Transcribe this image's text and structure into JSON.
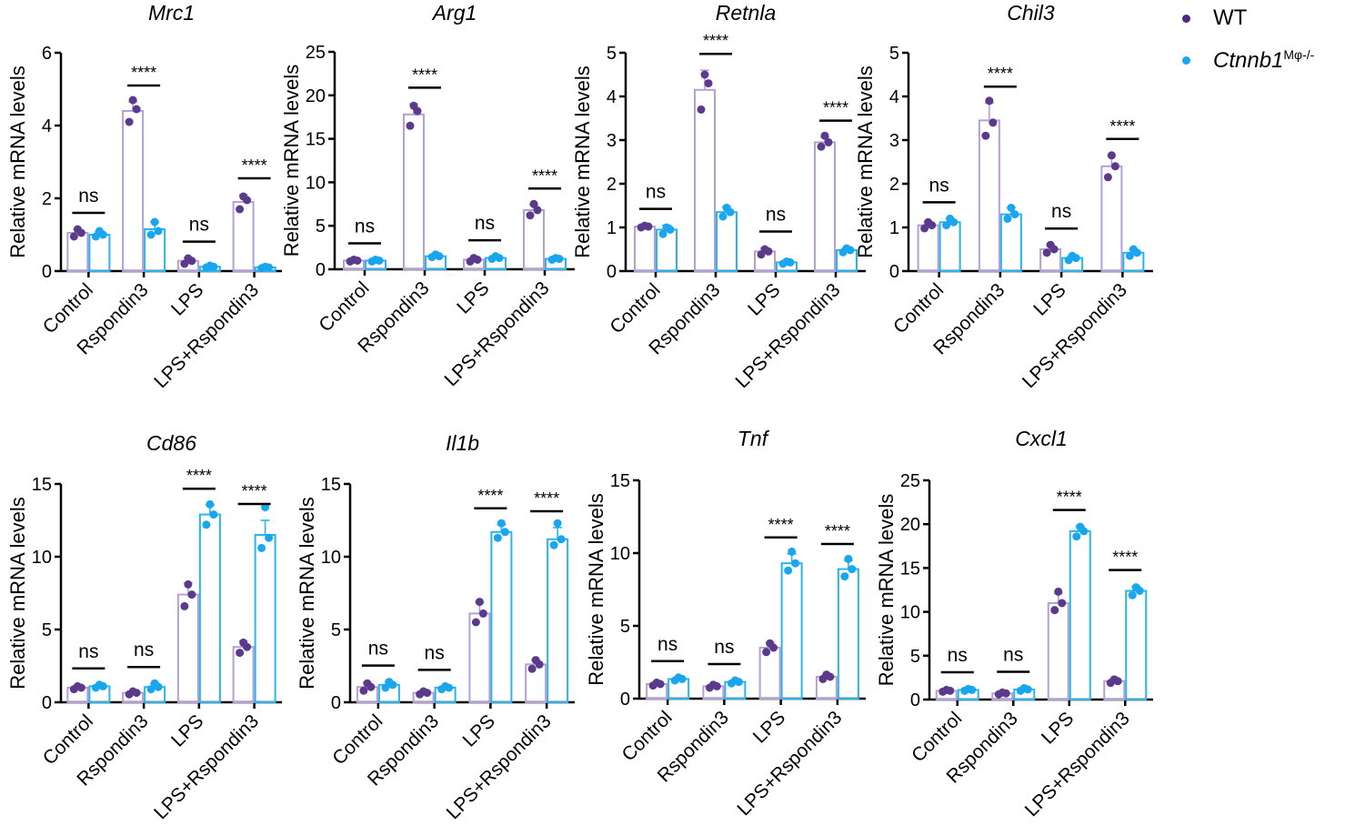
{
  "legend": {
    "wt_label": "WT",
    "ko_label_main": "Ctnnb1",
    "ko_label_sup": "Mφ-/-"
  },
  "colors": {
    "wt_fill": "#5b3a8c",
    "wt_bar": "#b49fd8",
    "ko_fill": "#1aa6ef",
    "ko_bar": "#27b5f0",
    "axis": "#000000"
  },
  "chart_data": [
    {
      "type": "bar",
      "title": "Mrc1",
      "ylabel": "Relative mRNA levels",
      "categories": [
        "Control",
        "Rspondin3",
        "LPS",
        "LPS+Rspondin3"
      ],
      "ylim": [
        0,
        6
      ],
      "yticks": [
        "0",
        "2",
        "4",
        "6"
      ],
      "series": [
        {
          "name": "WT",
          "values": [
            1.05,
            4.4,
            0.28,
            1.9
          ],
          "sd": [
            0.1,
            0.25,
            0.08,
            0.2
          ],
          "points": [
            [
              0.95,
              1.05,
              1.15
            ],
            [
              4.1,
              4.45,
              4.7
            ],
            [
              0.2,
              0.28,
              0.35
            ],
            [
              1.7,
              1.95,
              2.05
            ]
          ]
        },
        {
          "name": "Ctnnb1 Mφ-/-",
          "values": [
            1.0,
            1.15,
            0.12,
            0.1
          ],
          "sd": [
            0.08,
            0.2,
            0.03,
            0.02
          ],
          "points": [
            [
              0.95,
              1.0,
              1.1
            ],
            [
              1.0,
              1.1,
              1.35
            ],
            [
              0.1,
              0.12,
              0.15
            ],
            [
              0.08,
              0.1,
              0.12
            ]
          ]
        }
      ],
      "annotations": [
        "ns",
        "****",
        "ns",
        "****"
      ]
    },
    {
      "type": "bar",
      "title": "Arg1",
      "ylabel": "Relative mRNA levels",
      "categories": [
        "Control",
        "Rspondin3",
        "LPS",
        "LPS+Rspondin3"
      ],
      "ylim": [
        0,
        25
      ],
      "yticks": [
        "0",
        "5",
        "10",
        "15",
        "20",
        "25"
      ],
      "series": [
        {
          "name": "WT",
          "values": [
            1.0,
            17.8,
            1.1,
            6.8
          ],
          "sd": [
            0.1,
            1.2,
            0.2,
            0.6
          ],
          "points": [
            [
              0.9,
              1.0,
              1.1
            ],
            [
              16.5,
              18.2,
              18.8
            ],
            [
              0.9,
              1.1,
              1.3
            ],
            [
              6.2,
              6.8,
              7.5
            ]
          ]
        },
        {
          "name": "Ctnnb1 Mφ-/-",
          "values": [
            1.0,
            1.5,
            1.3,
            1.2
          ],
          "sd": [
            0.1,
            0.15,
            0.15,
            0.1
          ],
          "points": [
            [
              0.9,
              1.0,
              1.1
            ],
            [
              1.4,
              1.5,
              1.7
            ],
            [
              1.2,
              1.3,
              1.5
            ],
            [
              1.1,
              1.2,
              1.3
            ]
          ]
        }
      ],
      "annotations": [
        "ns",
        "****",
        "ns",
        "****"
      ]
    },
    {
      "type": "bar",
      "title": "Retnla",
      "ylabel": "Relative mRNA levels",
      "categories": [
        "Control",
        "Rspondin3",
        "LPS",
        "LPS+Rspondin3"
      ],
      "ylim": [
        0,
        5
      ],
      "yticks": [
        "0",
        "1",
        "2",
        "3",
        "4",
        "5"
      ],
      "series": [
        {
          "name": "WT",
          "values": [
            1.02,
            4.15,
            0.45,
            2.95
          ],
          "sd": [
            0.03,
            0.45,
            0.08,
            0.12
          ],
          "points": [
            [
              1.0,
              1.02,
              1.04
            ],
            [
              3.7,
              4.3,
              4.5
            ],
            [
              0.38,
              0.45,
              0.5
            ],
            [
              2.85,
              2.95,
              3.1
            ]
          ]
        },
        {
          "name": "Ctnnb1 Mφ-/-",
          "values": [
            0.95,
            1.35,
            0.2,
            0.48
          ],
          "sd": [
            0.1,
            0.12,
            0.03,
            0.05
          ],
          "points": [
            [
              0.85,
              0.95,
              1.0
            ],
            [
              1.25,
              1.35,
              1.45
            ],
            [
              0.17,
              0.2,
              0.22
            ],
            [
              0.43,
              0.48,
              0.52
            ]
          ]
        }
      ],
      "annotations": [
        "ns",
        "****",
        "ns",
        "****"
      ]
    },
    {
      "type": "bar",
      "title": "Chil3",
      "ylabel": "Relative mRNA levels",
      "categories": [
        "Control",
        "Rspondin3",
        "LPS",
        "LPS+Rspondin3"
      ],
      "ylim": [
        0,
        5
      ],
      "yticks": [
        "0",
        "1",
        "2",
        "3",
        "4",
        "5"
      ],
      "series": [
        {
          "name": "WT",
          "values": [
            1.05,
            3.45,
            0.5,
            2.4
          ],
          "sd": [
            0.08,
            0.4,
            0.1,
            0.25
          ],
          "points": [
            [
              0.98,
              1.05,
              1.12
            ],
            [
              3.1,
              3.4,
              3.9
            ],
            [
              0.42,
              0.5,
              0.6
            ],
            [
              2.15,
              2.4,
              2.65
            ]
          ]
        },
        {
          "name": "Ctnnb1 Mφ-/-",
          "values": [
            1.12,
            1.3,
            0.3,
            0.42
          ],
          "sd": [
            0.08,
            0.15,
            0.05,
            0.08
          ],
          "points": [
            [
              1.05,
              1.12,
              1.2
            ],
            [
              1.2,
              1.3,
              1.45
            ],
            [
              0.25,
              0.3,
              0.35
            ],
            [
              0.35,
              0.42,
              0.5
            ]
          ]
        }
      ],
      "annotations": [
        "ns",
        "****",
        "ns",
        "****"
      ]
    },
    {
      "type": "bar",
      "title": "Cd86",
      "ylabel": "Relative mRNA levels",
      "categories": [
        "Control",
        "Rspondin3",
        "LPS",
        "LPS+Rspondin3"
      ],
      "ylim": [
        0,
        15
      ],
      "yticks": [
        "0",
        "5",
        "10",
        "15"
      ],
      "series": [
        {
          "name": "WT",
          "values": [
            1.0,
            0.65,
            7.4,
            3.8
          ],
          "sd": [
            0.15,
            0.1,
            0.8,
            0.4
          ],
          "points": [
            [
              0.9,
              1.0,
              1.1
            ],
            [
              0.55,
              0.65,
              0.75
            ],
            [
              6.6,
              7.4,
              8.1
            ],
            [
              3.4,
              3.8,
              4.1
            ]
          ]
        },
        {
          "name": "Ctnnb1 Mφ-/-",
          "values": [
            1.1,
            1.05,
            12.9,
            11.5
          ],
          "sd": [
            0.1,
            0.25,
            0.65,
            1.0
          ],
          "points": [
            [
              1.0,
              1.1,
              1.2
            ],
            [
              0.9,
              1.05,
              1.3
            ],
            [
              12.2,
              12.9,
              13.6
            ],
            [
              10.6,
              11.3,
              13.4
            ]
          ]
        }
      ],
      "annotations": [
        "ns",
        "ns",
        "****",
        "****"
      ]
    },
    {
      "type": "bar",
      "title": "Il1b",
      "ylabel": "Relative mRNA levels",
      "categories": [
        "Control",
        "Rspondin3",
        "LPS",
        "LPS+Rspondin3"
      ],
      "ylim": [
        0,
        15
      ],
      "yticks": [
        "0",
        "5",
        "10",
        "15"
      ],
      "series": [
        {
          "name": "WT",
          "values": [
            1.05,
            0.65,
            6.1,
            2.6
          ],
          "sd": [
            0.3,
            0.1,
            0.75,
            0.3
          ],
          "points": [
            [
              0.8,
              1.05,
              1.3
            ],
            [
              0.55,
              0.65,
              0.75
            ],
            [
              5.5,
              6.1,
              6.9
            ],
            [
              2.3,
              2.6,
              2.9
            ]
          ]
        },
        {
          "name": "Ctnnb1 Mφ-/-",
          "values": [
            1.2,
            1.0,
            11.7,
            11.2
          ],
          "sd": [
            0.2,
            0.1,
            0.5,
            0.8
          ],
          "points": [
            [
              1.0,
              1.2,
              1.4
            ],
            [
              0.9,
              1.0,
              1.1
            ],
            [
              11.3,
              11.7,
              12.3
            ],
            [
              10.8,
              11.2,
              12.3
            ]
          ]
        }
      ],
      "annotations": [
        "ns",
        "ns",
        "****",
        "****"
      ]
    },
    {
      "type": "bar",
      "title": "Tnf",
      "ylabel": "Relative mRNA levels",
      "categories": [
        "Control",
        "Rspondin3",
        "LPS",
        "LPS+Rspondin3"
      ],
      "ylim": [
        0,
        15
      ],
      "yticks": [
        "0",
        "5",
        "10",
        "15"
      ],
      "series": [
        {
          "name": "WT",
          "values": [
            1.0,
            0.85,
            3.5,
            1.5
          ],
          "sd": [
            0.1,
            0.1,
            0.35,
            0.15
          ],
          "points": [
            [
              0.9,
              1.0,
              1.1
            ],
            [
              0.75,
              0.85,
              0.95
            ],
            [
              3.2,
              3.5,
              3.8
            ],
            [
              1.35,
              1.5,
              1.65
            ]
          ]
        },
        {
          "name": "Ctnnb1 Mφ-/-",
          "values": [
            1.35,
            1.15,
            9.3,
            8.9
          ],
          "sd": [
            0.1,
            0.1,
            0.65,
            0.6
          ],
          "points": [
            [
              1.25,
              1.35,
              1.45
            ],
            [
              1.05,
              1.15,
              1.25
            ],
            [
              8.8,
              9.3,
              10.1
            ],
            [
              8.4,
              8.9,
              9.6
            ]
          ]
        }
      ],
      "annotations": [
        "ns",
        "ns",
        "****",
        "****"
      ]
    },
    {
      "type": "bar",
      "title": "Cxcl1",
      "ylabel": "Relative mRNA levels",
      "categories": [
        "Control",
        "Rspondin3",
        "LPS",
        "LPS+Rspondin3"
      ],
      "ylim": [
        0,
        25
      ],
      "yticks": [
        "0",
        "5",
        "10",
        "15",
        "20",
        "25"
      ],
      "series": [
        {
          "name": "WT",
          "values": [
            1.0,
            0.7,
            11.0,
            2.1
          ],
          "sd": [
            0.15,
            0.1,
            1.1,
            0.2
          ],
          "points": [
            [
              0.9,
              1.0,
              1.1
            ],
            [
              0.6,
              0.7,
              0.8
            ],
            [
              10.2,
              11.0,
              12.3
            ],
            [
              1.9,
              2.1,
              2.3
            ]
          ]
        },
        {
          "name": "Ctnnb1 Mφ-/-",
          "values": [
            1.1,
            1.15,
            19.2,
            12.4
          ],
          "sd": [
            0.15,
            0.15,
            0.55,
            0.5
          ],
          "points": [
            [
              1.0,
              1.1,
              1.2
            ],
            [
              1.0,
              1.15,
              1.3
            ],
            [
              18.6,
              19.2,
              19.7
            ],
            [
              11.9,
              12.4,
              12.8
            ]
          ]
        }
      ],
      "annotations": [
        "ns",
        "ns",
        "****",
        "****"
      ]
    }
  ]
}
